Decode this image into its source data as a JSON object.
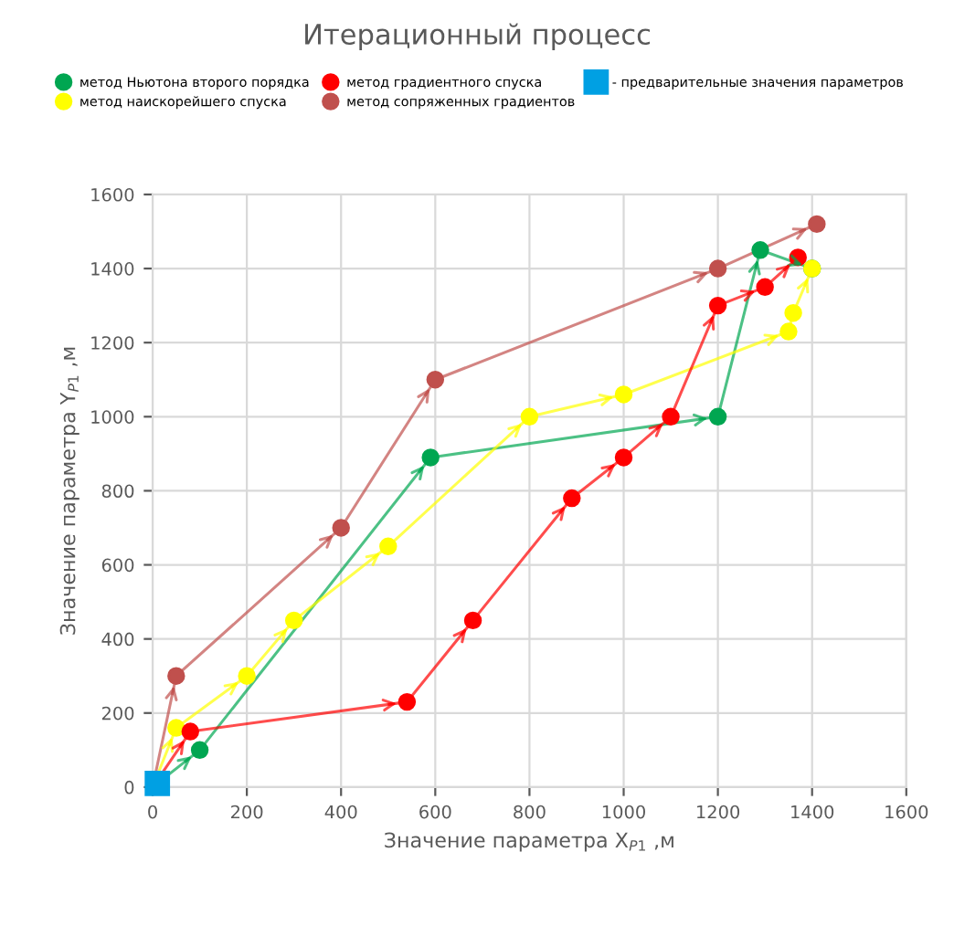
{
  "chart_data": {
    "type": "line",
    "title": "Итерационный процесс",
    "xlabel": "Значение параметра X$_{P1}$ ,м",
    "ylabel": "Значение параметра Y$_{P1}$ ,м",
    "xlim": [
      0,
      1600
    ],
    "ylim": [
      0,
      1600
    ],
    "xticks": [
      0,
      200,
      400,
      600,
      800,
      1000,
      1200,
      1400,
      1600
    ],
    "yticks": [
      0,
      200,
      400,
      600,
      800,
      1000,
      1200,
      1400,
      1600
    ],
    "grid": true,
    "legend": "top",
    "marker": "circle",
    "series": [
      {
        "name": "метод Ньютона второго порядка",
        "color": "#00a651",
        "x": [
          0,
          100,
          590,
          1200,
          1290,
          1400
        ],
        "values": [
          0,
          100,
          890,
          1000,
          1450,
          1400
        ]
      },
      {
        "name": "метод наискорейшего спуска",
        "color": "#ffff00",
        "x": [
          0,
          50,
          200,
          300,
          500,
          800,
          1000,
          1350,
          1360,
          1400
        ],
        "values": [
          0,
          160,
          300,
          450,
          650,
          1000,
          1060,
          1230,
          1280,
          1400
        ]
      },
      {
        "name": "метод градиентного спуска",
        "color": "#ff0000",
        "x": [
          0,
          80,
          540,
          680,
          890,
          1000,
          1100,
          1200,
          1300,
          1370
        ],
        "values": [
          0,
          150,
          230,
          450,
          780,
          890,
          1000,
          1300,
          1350,
          1430
        ]
      },
      {
        "name": "метод сопряженных градиентов",
        "color": "#c0504d",
        "x": [
          0,
          50,
          400,
          600,
          1200,
          1410
        ],
        "values": [
          0,
          300,
          700,
          1100,
          1400,
          1520
        ]
      },
      {
        "name": "- предварительные значения параметров",
        "color": "#00a0e3",
        "type": "scatter",
        "marker": "square",
        "x": [
          10
        ],
        "values": [
          10
        ]
      }
    ]
  }
}
